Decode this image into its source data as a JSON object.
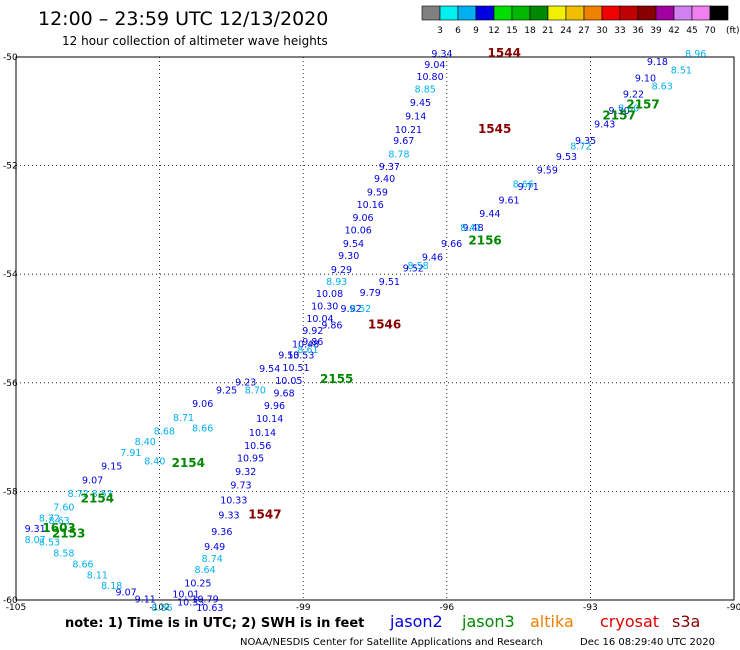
{
  "title": "12:00 – 23:59 UTC 12/13/2020",
  "subtitle": "12 hour collection of altimeter wave heights",
  "note": "note:  1) Time is in UTC; 2) SWH is in feet",
  "credit": "NOAA/NESDIS Center for Satellite Applications and Research",
  "timestamp": "Dec 16 08:29:40 UTC 2020",
  "colorbar": {
    "unit": "(ft)",
    "labels": [
      "3",
      "6",
      "9",
      "12",
      "15",
      "18",
      "21",
      "24",
      "27",
      "30",
      "33",
      "36",
      "39",
      "42",
      "45",
      "70"
    ],
    "colors": [
      "#808080",
      "#00f0f0",
      "#00b0f0",
      "#0000e0",
      "#00e000",
      "#00b800",
      "#008800",
      "#f0f000",
      "#f0c000",
      "#f08000",
      "#f00000",
      "#c00000",
      "#880000",
      "#a000a0",
      "#d080f0",
      "#f080f0",
      "#000000"
    ]
  },
  "satellites": [
    {
      "name": "jason2",
      "color": "#0000e0"
    },
    {
      "name": "jason3",
      "color": "#008800"
    },
    {
      "name": "altika",
      "color": "#f08000"
    },
    {
      "name": "cryosat",
      "color": "#e00000"
    },
    {
      "name": "s3a",
      "color": "#880000"
    }
  ],
  "chart_data": {
    "type": "scatter",
    "xlabel": "",
    "ylabel": "",
    "xlim": [
      -105,
      -90
    ],
    "ylim": [
      -60,
      -50
    ],
    "x_ticks": [
      "-105",
      "-102",
      "-99",
      "-96",
      "-93",
      "-90"
    ],
    "y_ticks": [
      "-50",
      "-52",
      "-54",
      "-56",
      "-58",
      "-60"
    ],
    "grid": "dotted",
    "series": [
      {
        "name": "track_1544_1547",
        "color": "#0000e0",
        "points": [
          {
            "x": -96.1,
            "y": -50.0,
            "v": "9.34"
          },
          {
            "x": -96.25,
            "y": -50.2,
            "v": "9.04"
          },
          {
            "x": -96.35,
            "y": -50.42,
            "v": "10.80"
          },
          {
            "x": -96.45,
            "y": -50.65,
            "v": "8.85",
            "c": "#00b0f0"
          },
          {
            "x": -96.55,
            "y": -50.9,
            "v": "9.45"
          },
          {
            "x": -96.65,
            "y": -51.15,
            "v": "9.14"
          },
          {
            "x": -96.8,
            "y": -51.4,
            "v": "10.21"
          },
          {
            "x": -96.9,
            "y": -51.6,
            "v": "9.67"
          },
          {
            "x": -97.0,
            "y": -51.85,
            "v": "8.78",
            "c": "#00b0f0"
          },
          {
            "x": -97.2,
            "y": -52.08,
            "v": "9.37"
          },
          {
            "x": -97.3,
            "y": -52.3,
            "v": "9.40"
          },
          {
            "x": -97.45,
            "y": -52.55,
            "v": "9.59"
          },
          {
            "x": -97.6,
            "y": -52.78,
            "v": "10.16"
          },
          {
            "x": -97.75,
            "y": -53.02,
            "v": "9.06"
          },
          {
            "x": -97.85,
            "y": -53.25,
            "v": "10.06"
          },
          {
            "x": -97.95,
            "y": -53.5,
            "v": "9.54"
          },
          {
            "x": -98.05,
            "y": -53.72,
            "v": "9.30"
          },
          {
            "x": -98.2,
            "y": -53.98,
            "v": "9.29"
          },
          {
            "x": -98.3,
            "y": -54.2,
            "v": "8.93",
            "c": "#00b0f0"
          },
          {
            "x": -98.45,
            "y": -54.42,
            "v": "10.08"
          },
          {
            "x": -98.55,
            "y": -54.65,
            "v": "10.30"
          },
          {
            "x": -98.65,
            "y": -54.88,
            "v": "10.04"
          },
          {
            "x": -98.8,
            "y": -55.1,
            "v": "9.92"
          },
          {
            "x": -98.95,
            "y": -55.35,
            "v": "10.48"
          },
          {
            "x": -99.05,
            "y": -55.55,
            "v": "10.53"
          },
          {
            "x": -99.15,
            "y": -55.78,
            "v": "10.51"
          },
          {
            "x": -99.3,
            "y": -56.02,
            "v": "10.05"
          },
          {
            "x": -99.4,
            "y": -56.25,
            "v": "9.68"
          },
          {
            "x": -99.6,
            "y": -56.48,
            "v": "9.96"
          },
          {
            "x": -99.7,
            "y": -56.72,
            "v": "10.14"
          },
          {
            "x": -99.85,
            "y": -56.98,
            "v": "10.14"
          },
          {
            "x": -99.95,
            "y": -57.22,
            "v": "10.56"
          },
          {
            "x": -100.1,
            "y": -57.45,
            "v": "10.95"
          },
          {
            "x": -100.2,
            "y": -57.7,
            "v": "9.32"
          },
          {
            "x": -100.3,
            "y": -57.95,
            "v": "9.73"
          },
          {
            "x": -100.45,
            "y": -58.22,
            "v": "10.33"
          },
          {
            "x": -100.55,
            "y": -58.5,
            "v": "9.33"
          },
          {
            "x": -100.7,
            "y": -58.8,
            "v": "9.36"
          },
          {
            "x": -100.85,
            "y": -59.08,
            "v": "9.49"
          },
          {
            "x": -100.9,
            "y": -59.3,
            "v": "8.74",
            "c": "#00b0f0"
          },
          {
            "x": -101.05,
            "y": -59.5,
            "v": "8.64",
            "c": "#00b0f0"
          },
          {
            "x": -101.2,
            "y": -59.75,
            "v": "10.25"
          },
          {
            "x": -101.45,
            "y": -59.95,
            "v": "10.01"
          },
          {
            "x": -101.35,
            "y": -60.1,
            "v": "10.33"
          },
          {
            "x": -101.05,
            "y": -60.05,
            "v": "10.79"
          },
          {
            "x": -100.95,
            "y": -60.2,
            "v": "10.63"
          }
        ]
      },
      {
        "name": "track_1546",
        "color": "#0000e0",
        "points": [
          {
            "x": -91.6,
            "y": -50.15,
            "v": "9.18"
          },
          {
            "x": -91.85,
            "y": -50.45,
            "v": "9.10"
          },
          {
            "x": -92.1,
            "y": -50.75,
            "v": "9.22"
          },
          {
            "x": -92.4,
            "y": -51.05,
            "v": "9.30"
          },
          {
            "x": -92.7,
            "y": -51.3,
            "v": "9.43"
          },
          {
            "x": -93.1,
            "y": -51.6,
            "v": "9.35"
          },
          {
            "x": -93.5,
            "y": -51.9,
            "v": "9.53"
          },
          {
            "x": -93.9,
            "y": -52.15,
            "v": "9.59"
          },
          {
            "x": -94.3,
            "y": -52.45,
            "v": "9.71"
          },
          {
            "x": -94.7,
            "y": -52.7,
            "v": "9.61"
          },
          {
            "x": -95.1,
            "y": -52.95,
            "v": "9.44"
          },
          {
            "x": -95.45,
            "y": -53.2,
            "v": "9.48"
          },
          {
            "x": -95.9,
            "y": -53.5,
            "v": "9.66"
          },
          {
            "x": -96.3,
            "y": -53.75,
            "v": "9.46"
          },
          {
            "x": -96.7,
            "y": -53.95,
            "v": "9.52"
          },
          {
            "x": -97.2,
            "y": -54.2,
            "v": "9.51"
          },
          {
            "x": -97.6,
            "y": -54.4,
            "v": "9.79"
          },
          {
            "x": -98.0,
            "y": -54.7,
            "v": "9.92"
          },
          {
            "x": -98.4,
            "y": -55.0,
            "v": "9.86"
          },
          {
            "x": -98.8,
            "y": -55.3,
            "v": "9.86"
          },
          {
            "x": -99.3,
            "y": -55.55,
            "v": "9.53"
          },
          {
            "x": -99.7,
            "y": -55.8,
            "v": "9.54"
          },
          {
            "x": -100.2,
            "y": -56.05,
            "v": "9.23"
          },
          {
            "x": -100.6,
            "y": -56.2,
            "v": "9.25"
          },
          {
            "x": -101.1,
            "y": -56.45,
            "v": "9.06"
          },
          {
            "x": -101.5,
            "y": -56.7,
            "v": "8.71",
            "c": "#00b0f0"
          },
          {
            "x": -101.9,
            "y": -56.95,
            "v": "8.68",
            "c": "#00b0f0"
          },
          {
            "x": -102.3,
            "y": -57.15,
            "v": "8.40",
            "c": "#00b0f0"
          },
          {
            "x": -102.6,
            "y": -57.35,
            "v": "7.91",
            "c": "#00b0f0"
          },
          {
            "x": -103.0,
            "y": -57.6,
            "v": "9.15"
          },
          {
            "x": -103.4,
            "y": -57.85,
            "v": "9.07"
          },
          {
            "x": -103.7,
            "y": -58.1,
            "v": "8.72",
            "c": "#00b0f0"
          },
          {
            "x": -104.0,
            "y": -58.35,
            "v": "7.60",
            "c": "#00b0f0"
          },
          {
            "x": -104.3,
            "y": -58.55,
            "v": "8.72",
            "c": "#00b0f0"
          },
          {
            "x": -104.6,
            "y": -58.75,
            "v": "9.31"
          },
          {
            "x": -104.3,
            "y": -59.0,
            "v": "8.53",
            "c": "#00b0f0"
          },
          {
            "x": -104.0,
            "y": -59.2,
            "v": "8.58",
            "c": "#00b0f0"
          },
          {
            "x": -103.6,
            "y": -59.4,
            "v": "8.66",
            "c": "#00b0f0"
          },
          {
            "x": -103.3,
            "y": -59.6,
            "v": "8.11",
            "c": "#00b0f0"
          },
          {
            "x": -103.0,
            "y": -59.8,
            "v": "8.18",
            "c": "#00b0f0"
          },
          {
            "x": -102.7,
            "y": -59.92,
            "v": "9.07"
          },
          {
            "x": -102.3,
            "y": -60.05,
            "v": "9.11"
          },
          {
            "x": -101.95,
            "y": -60.2,
            "v": "8.86",
            "c": "#00b0f0"
          }
        ]
      },
      {
        "name": "track_2157_2153",
        "color": "#00b0f0",
        "points": [
          {
            "x": -90.8,
            "y": -50.0,
            "v": "8.96"
          },
          {
            "x": -91.1,
            "y": -50.3,
            "v": "8.51"
          },
          {
            "x": -91.5,
            "y": -50.6,
            "v": "8.63"
          },
          {
            "x": -92.2,
            "y": -51.0,
            "v": "8.60"
          },
          {
            "x": -93.2,
            "y": -51.7,
            "v": "8.72"
          },
          {
            "x": -94.4,
            "y": -52.4,
            "v": "8.66"
          },
          {
            "x": -95.5,
            "y": -53.2,
            "v": "8.41"
          },
          {
            "x": -96.6,
            "y": -53.9,
            "v": "8.58"
          },
          {
            "x": -97.8,
            "y": -54.7,
            "v": "8.52"
          },
          {
            "x": -98.9,
            "y": -55.45,
            "v": "8.61"
          },
          {
            "x": -100.0,
            "y": -56.2,
            "v": "8.70"
          },
          {
            "x": -101.1,
            "y": -56.9,
            "v": "8.66"
          },
          {
            "x": -102.1,
            "y": -57.5,
            "v": "8.40"
          },
          {
            "x": -103.2,
            "y": -58.1,
            "v": "8.53"
          },
          {
            "x": -104.1,
            "y": -58.6,
            "v": "8.63"
          },
          {
            "x": -104.6,
            "y": -58.95,
            "v": "8.07"
          }
        ]
      }
    ],
    "pass_labels": [
      {
        "text": "1544",
        "x": -94.8,
        "y": -50.0,
        "color": "#880000"
      },
      {
        "text": "1545",
        "x": -95.0,
        "y": -51.4,
        "color": "#880000"
      },
      {
        "text": "1546",
        "x": -97.3,
        "y": -55.0,
        "color": "#880000"
      },
      {
        "text": "1547",
        "x": -99.8,
        "y": -58.5,
        "color": "#880000"
      },
      {
        "text": "2157",
        "x": -91.9,
        "y": -50.95,
        "color": "#008800"
      },
      {
        "text": "2157",
        "x": -92.4,
        "y": -51.15,
        "color": "#008800"
      },
      {
        "text": "2156",
        "x": -95.2,
        "y": -53.45,
        "color": "#008800"
      },
      {
        "text": "2155",
        "x": -98.3,
        "y": -56.0,
        "color": "#008800"
      },
      {
        "text": "2154",
        "x": -101.4,
        "y": -57.55,
        "color": "#008800"
      },
      {
        "text": "2154",
        "x": -103.3,
        "y": -58.2,
        "color": "#008800"
      },
      {
        "text": "2153",
        "x": -103.9,
        "y": -58.85,
        "color": "#008800"
      },
      {
        "text": "1603",
        "x": -104.1,
        "y": -58.75,
        "color": "#008800"
      }
    ]
  }
}
